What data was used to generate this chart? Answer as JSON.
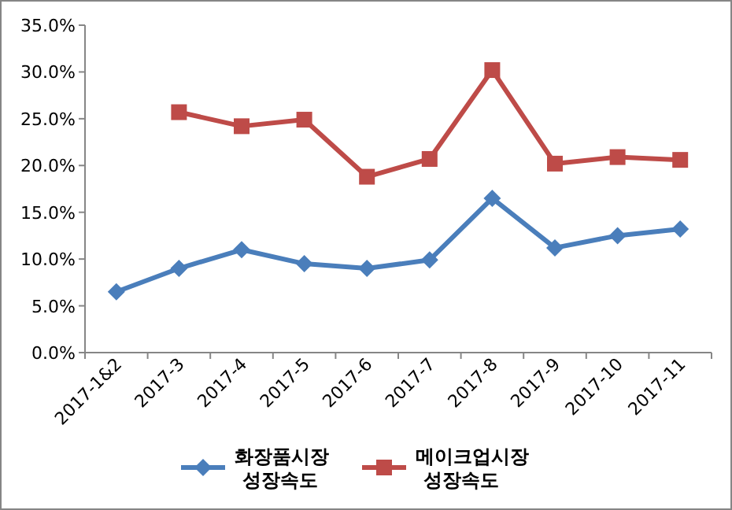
{
  "chart_data": {
    "type": "line",
    "categories": [
      "2017-1&2",
      "2017-3",
      "2017-4",
      "2017-5",
      "2017-6",
      "2017-7",
      "2017-8",
      "2017-9",
      "2017-10",
      "2017-11"
    ],
    "series": [
      {
        "name": "화장품시장 성장속도",
        "color": "#4a7ebb",
        "marker": "diamond",
        "values": [
          6.5,
          9.0,
          11.0,
          9.5,
          9.0,
          9.9,
          16.5,
          11.2,
          12.5,
          13.2
        ]
      },
      {
        "name": "메이크업시장 성장속도",
        "color": "#be4b48",
        "marker": "square",
        "values": [
          null,
          25.7,
          24.2,
          24.9,
          18.8,
          20.7,
          30.2,
          20.2,
          20.9,
          20.6
        ]
      }
    ],
    "ylim": [
      0,
      35
    ],
    "yticks": [
      {
        "value": 0,
        "label": "0.0%"
      },
      {
        "value": 5,
        "label": "5.0%"
      },
      {
        "value": 10,
        "label": "10.0%"
      },
      {
        "value": 15,
        "label": "15.0%"
      },
      {
        "value": 20,
        "label": "20.0%"
      },
      {
        "value": 25,
        "label": "25.0%"
      },
      {
        "value": 30,
        "label": "30.0%"
      },
      {
        "value": 35,
        "label": "35.0%"
      }
    ],
    "grid": false,
    "legend": "bottom",
    "line_style": "solid"
  }
}
